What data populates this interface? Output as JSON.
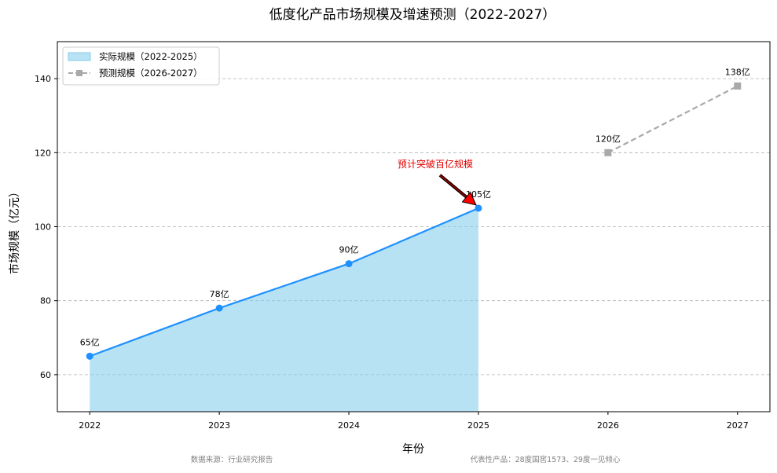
{
  "chart_data": {
    "type": "line",
    "title": "低度化产品市场规模及增速预测（2022-2027）",
    "xlabel": "年份",
    "ylabel": "市场规模（亿元）",
    "x": [
      "2022",
      "2023",
      "2024",
      "2025",
      "2026",
      "2027"
    ],
    "xlim": [
      2021.75,
      2027.25
    ],
    "ylim": [
      50,
      150
    ],
    "yticks": [
      60,
      80,
      100,
      120,
      140
    ],
    "grid": "horizontal dashed",
    "legend_position": "top-left",
    "series": [
      {
        "name": "实际规模（2022-2025）",
        "style": "solid line with area fill",
        "color": "#1e90ff",
        "fill_color": "#87ceeb",
        "x": [
          2022,
          2023,
          2024,
          2025
        ],
        "values": [
          65,
          78,
          90,
          105
        ],
        "labels": [
          "65亿",
          "78亿",
          "90亿",
          "105亿"
        ]
      },
      {
        "name": "预测规模（2026-2027）",
        "style": "dashed line with square markers",
        "color": "#a9a9a9",
        "x": [
          2026,
          2027
        ],
        "values": [
          120,
          138
        ],
        "labels": [
          "120亿",
          "138亿"
        ]
      }
    ],
    "annotation": {
      "text": "预计突破百亿规模",
      "color": "#ff0000",
      "target_x": 2025,
      "target_y": 105
    }
  },
  "footer": {
    "source": "数据来源：行业研究报告",
    "products": "代表性产品：28度国窖1573、29度一见倾心"
  }
}
